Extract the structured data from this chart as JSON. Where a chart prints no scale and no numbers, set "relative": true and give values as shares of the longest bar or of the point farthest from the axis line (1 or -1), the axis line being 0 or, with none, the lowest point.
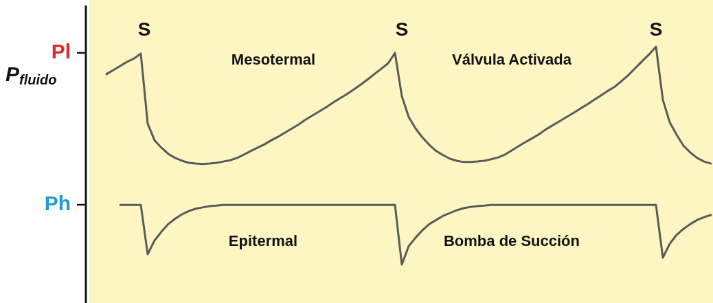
{
  "chart_data": {
    "type": "line",
    "relative": true,
    "ylabel": "P$_{fluido}$",
    "line_style": "solid",
    "categories": [
      null,
      null,
      null,
      null,
      null,
      null,
      null,
      null,
      null,
      null,
      null,
      null,
      null,
      null,
      null,
      null,
      null,
      null,
      null,
      null,
      null,
      null,
      null,
      null,
      null,
      null,
      null,
      null,
      null,
      null,
      null,
      null,
      null,
      null,
      null,
      null,
      null,
      null,
      null,
      null,
      null,
      null,
      null,
      null,
      null,
      null,
      null,
      null,
      null,
      null,
      null,
      null,
      null,
      null,
      null,
      null,
      null,
      null,
      null,
      null,
      null,
      null,
      null,
      null,
      null,
      null,
      null,
      null,
      null,
      null,
      null,
      null,
      null,
      null,
      null,
      null,
      null,
      null,
      null,
      null,
      null,
      null,
      null,
      null,
      null,
      null,
      null,
      null,
      null
    ],
    "series": [
      {
        "color": "#5a5a5a",
        "values": [
          0.893,
          0.909,
          0.925,
          0.941,
          0.954,
          0.973,
          0.7,
          0.635,
          0.606,
          0.582,
          0.566,
          0.555,
          0.547,
          0.544,
          0.542,
          0.544,
          0.547,
          0.552,
          0.557,
          0.566,
          0.579,
          0.593,
          0.606,
          0.619,
          0.635,
          0.649,
          0.665,
          0.681,
          0.697,
          0.716,
          0.732,
          0.748,
          0.764,
          0.782,
          0.799,
          0.815,
          0.833,
          0.852,
          0.872,
          0.893,
          0.914,
          0.935,
          0.976,
          0.807,
          0.726,
          0.681,
          0.646,
          0.617,
          0.593,
          0.577,
          0.563,
          0.555,
          0.55,
          0.55,
          0.552,
          0.555,
          0.561,
          0.568,
          0.579,
          0.595,
          0.612,
          0.628,
          0.643,
          0.659,
          0.678,
          0.694,
          0.71,
          0.726,
          0.742,
          0.759,
          0.775,
          0.793,
          0.81,
          0.828,
          0.844,
          0.866,
          0.89,
          0.917,
          0.944,
          0.97,
          1,
          0.793,
          0.705,
          0.657,
          0.614,
          0.587,
          0.566,
          0.552,
          0.544
        ]
      },
      {
        "color": "#5a5a5a",
        "values": [
          null,
          null,
          0.383,
          0.383,
          0.383,
          0.383,
          0.19,
          0.244,
          0.278,
          0.308,
          0.329,
          0.346,
          0.359,
          0.368,
          0.373,
          0.378,
          0.38,
          0.383,
          0.383,
          0.383,
          0.383,
          0.383,
          0.383,
          0.383,
          0.383,
          0.383,
          0.383,
          0.383,
          0.383,
          0.383,
          0.383,
          0.383,
          0.383,
          0.383,
          0.383,
          0.383,
          0.383,
          0.383,
          0.383,
          0.383,
          0.383,
          0.383,
          0.383,
          0.15,
          0.222,
          0.255,
          0.284,
          0.308,
          0.324,
          0.34,
          0.351,
          0.362,
          0.37,
          0.375,
          0.378,
          0.38,
          0.383,
          0.383,
          0.383,
          0.383,
          0.383,
          0.383,
          0.383,
          0.383,
          0.383,
          0.383,
          0.383,
          0.383,
          0.383,
          0.383,
          0.383,
          0.383,
          0.383,
          0.383,
          0.383,
          0.383,
          0.383,
          0.383,
          0.383,
          0.383,
          0.383,
          0.177,
          0.231,
          0.266,
          0.289,
          0.308,
          0.324,
          0.335,
          0.343
        ]
      }
    ],
    "annotations": [
      "Pl",
      "Ph",
      "S",
      "S",
      "S",
      "Mesotermal",
      "Válvula Activada",
      "Epitermal",
      "Bomba de Succión"
    ]
  }
}
